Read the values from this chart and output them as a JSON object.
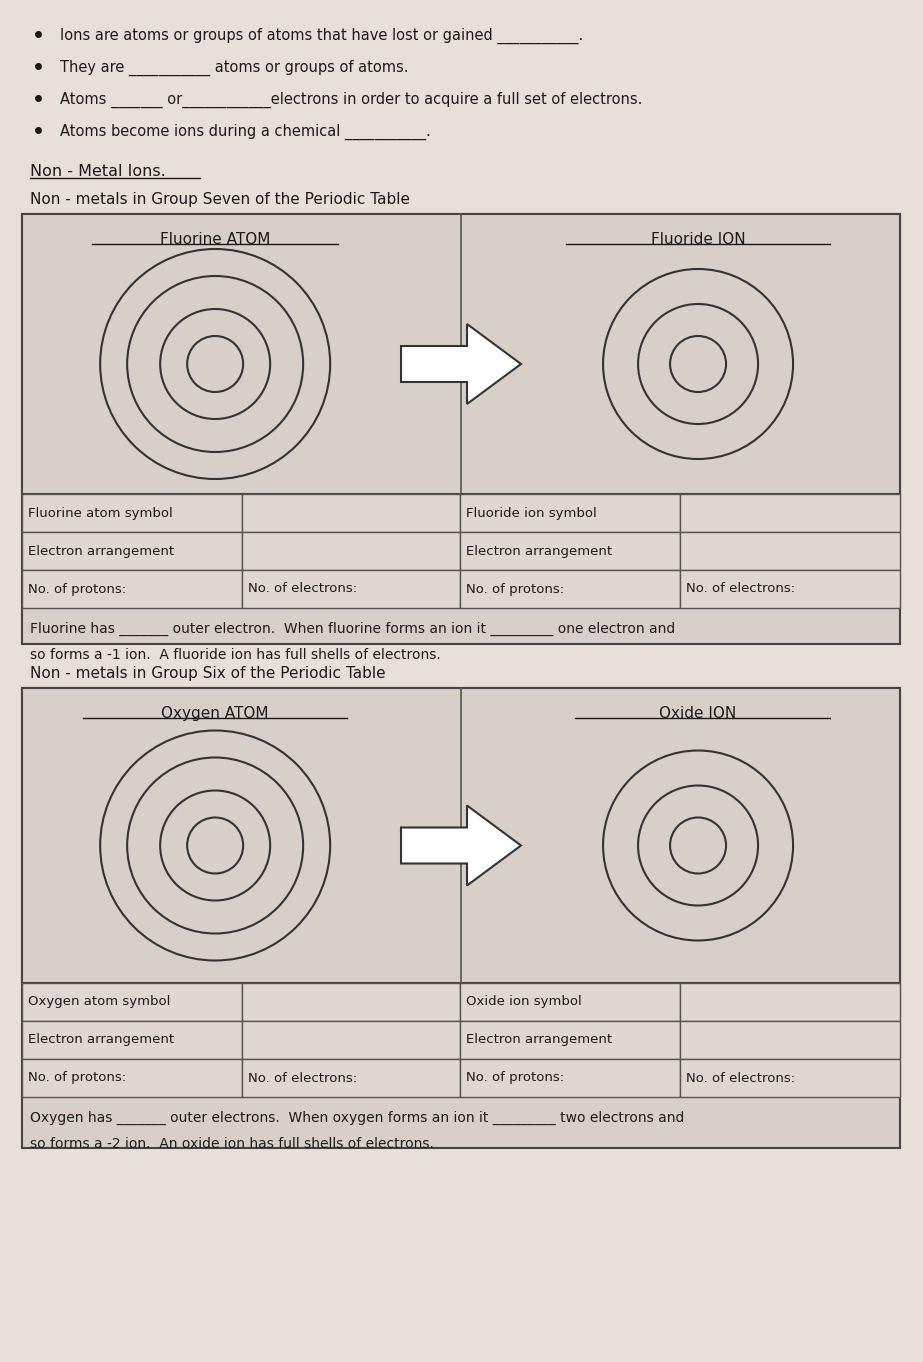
{
  "bg_color": "#e8e0d8",
  "box_bg": "#d8d0c8",
  "white": "#ffffff",
  "black": "#1a1a1a",
  "bullet_points": [
    "Ions are atoms or groups of atoms that have lost or gained ___________.",
    "They are ___________ atoms or groups of atoms.",
    "Atoms _______ or____________electrons in order to acquire a full set of electrons.",
    "Atoms become ions during a chemical ___________."
  ],
  "section_heading": "Non - Metal Ions.",
  "fluorine_heading": "Non - metals in Group Seven of the Periodic Table",
  "fluorine_atom_title": "Fluorine ATOM",
  "fluoride_ion_title": "Fluoride ION",
  "fluorine_table": [
    [
      "Fluorine atom symbol",
      "",
      "Fluoride ion symbol",
      ""
    ],
    [
      "Electron arrangement",
      "",
      "Electron arrangement",
      ""
    ],
    [
      "No. of protons:",
      "No. of electrons:",
      "No. of protons:",
      "No. of electrons:"
    ]
  ],
  "fluorine_text1": "Fluorine has _______ outer electron.  When fluorine forms an ion it _________ one electron and",
  "fluorine_text2": "so forms a -1 ion.  A fluoride ion has full shells of electrons.",
  "oxygen_heading": "Non - metals in Group Six of the Periodic Table",
  "oxygen_atom_title": "Oxygen ATOM",
  "oxide_ion_title": "Oxide ION",
  "oxygen_table": [
    [
      "Oxygen atom symbol",
      "",
      "Oxide ion symbol",
      ""
    ],
    [
      "Electron arrangement",
      "",
      "Electron arrangement",
      ""
    ],
    [
      "No. of protons:",
      "No. of electrons:",
      "No. of protons:",
      "No. of electrons:"
    ]
  ],
  "oxygen_text1": "Oxygen has _______ outer electrons.  When oxygen forms an ion it _________ two electrons and",
  "oxygen_text2": "so forms a -2 ion.  An oxide ion has full shells of electrons."
}
